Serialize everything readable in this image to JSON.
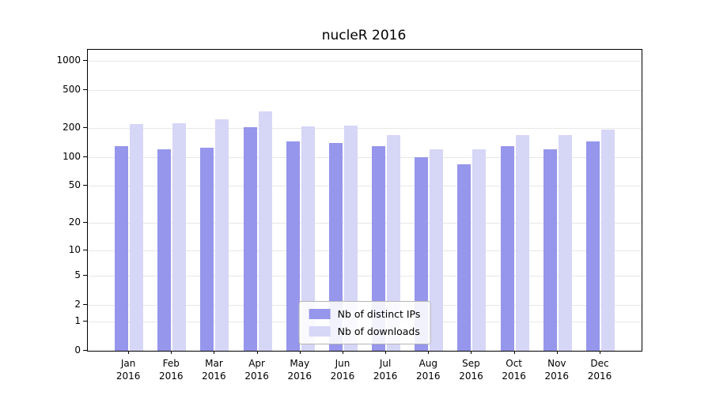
{
  "chart_data": {
    "type": "bar",
    "title": "nucleR 2016",
    "xlabel": "",
    "ylabel": "",
    "yscale": "symlog",
    "grid": true,
    "legend_position": "lower center inside",
    "yticks": [
      0,
      1,
      2,
      5,
      10,
      20,
      50,
      100,
      200,
      500,
      1000
    ],
    "ylim": [
      0,
      1000
    ],
    "categories": [
      {
        "month": "Jan",
        "year": "2016"
      },
      {
        "month": "Feb",
        "year": "2016"
      },
      {
        "month": "Mar",
        "year": "2016"
      },
      {
        "month": "Apr",
        "year": "2016"
      },
      {
        "month": "May",
        "year": "2016"
      },
      {
        "month": "Jun",
        "year": "2016"
      },
      {
        "month": "Jul",
        "year": "2016"
      },
      {
        "month": "Aug",
        "year": "2016"
      },
      {
        "month": "Sep",
        "year": "2016"
      },
      {
        "month": "Oct",
        "year": "2016"
      },
      {
        "month": "Nov",
        "year": "2016"
      },
      {
        "month": "Dec",
        "year": "2016"
      }
    ],
    "series": [
      {
        "name": "Nb of distinct IPs",
        "color": "#9696ec",
        "values": [
          130,
          120,
          125,
          205,
          145,
          140,
          130,
          100,
          85,
          130,
          120,
          145
        ]
      },
      {
        "name": "Nb of downloads",
        "color": "#d6d6f7",
        "values": [
          220,
          225,
          250,
          300,
          210,
          215,
          170,
          120,
          120,
          170,
          170,
          195
        ]
      }
    ]
  }
}
